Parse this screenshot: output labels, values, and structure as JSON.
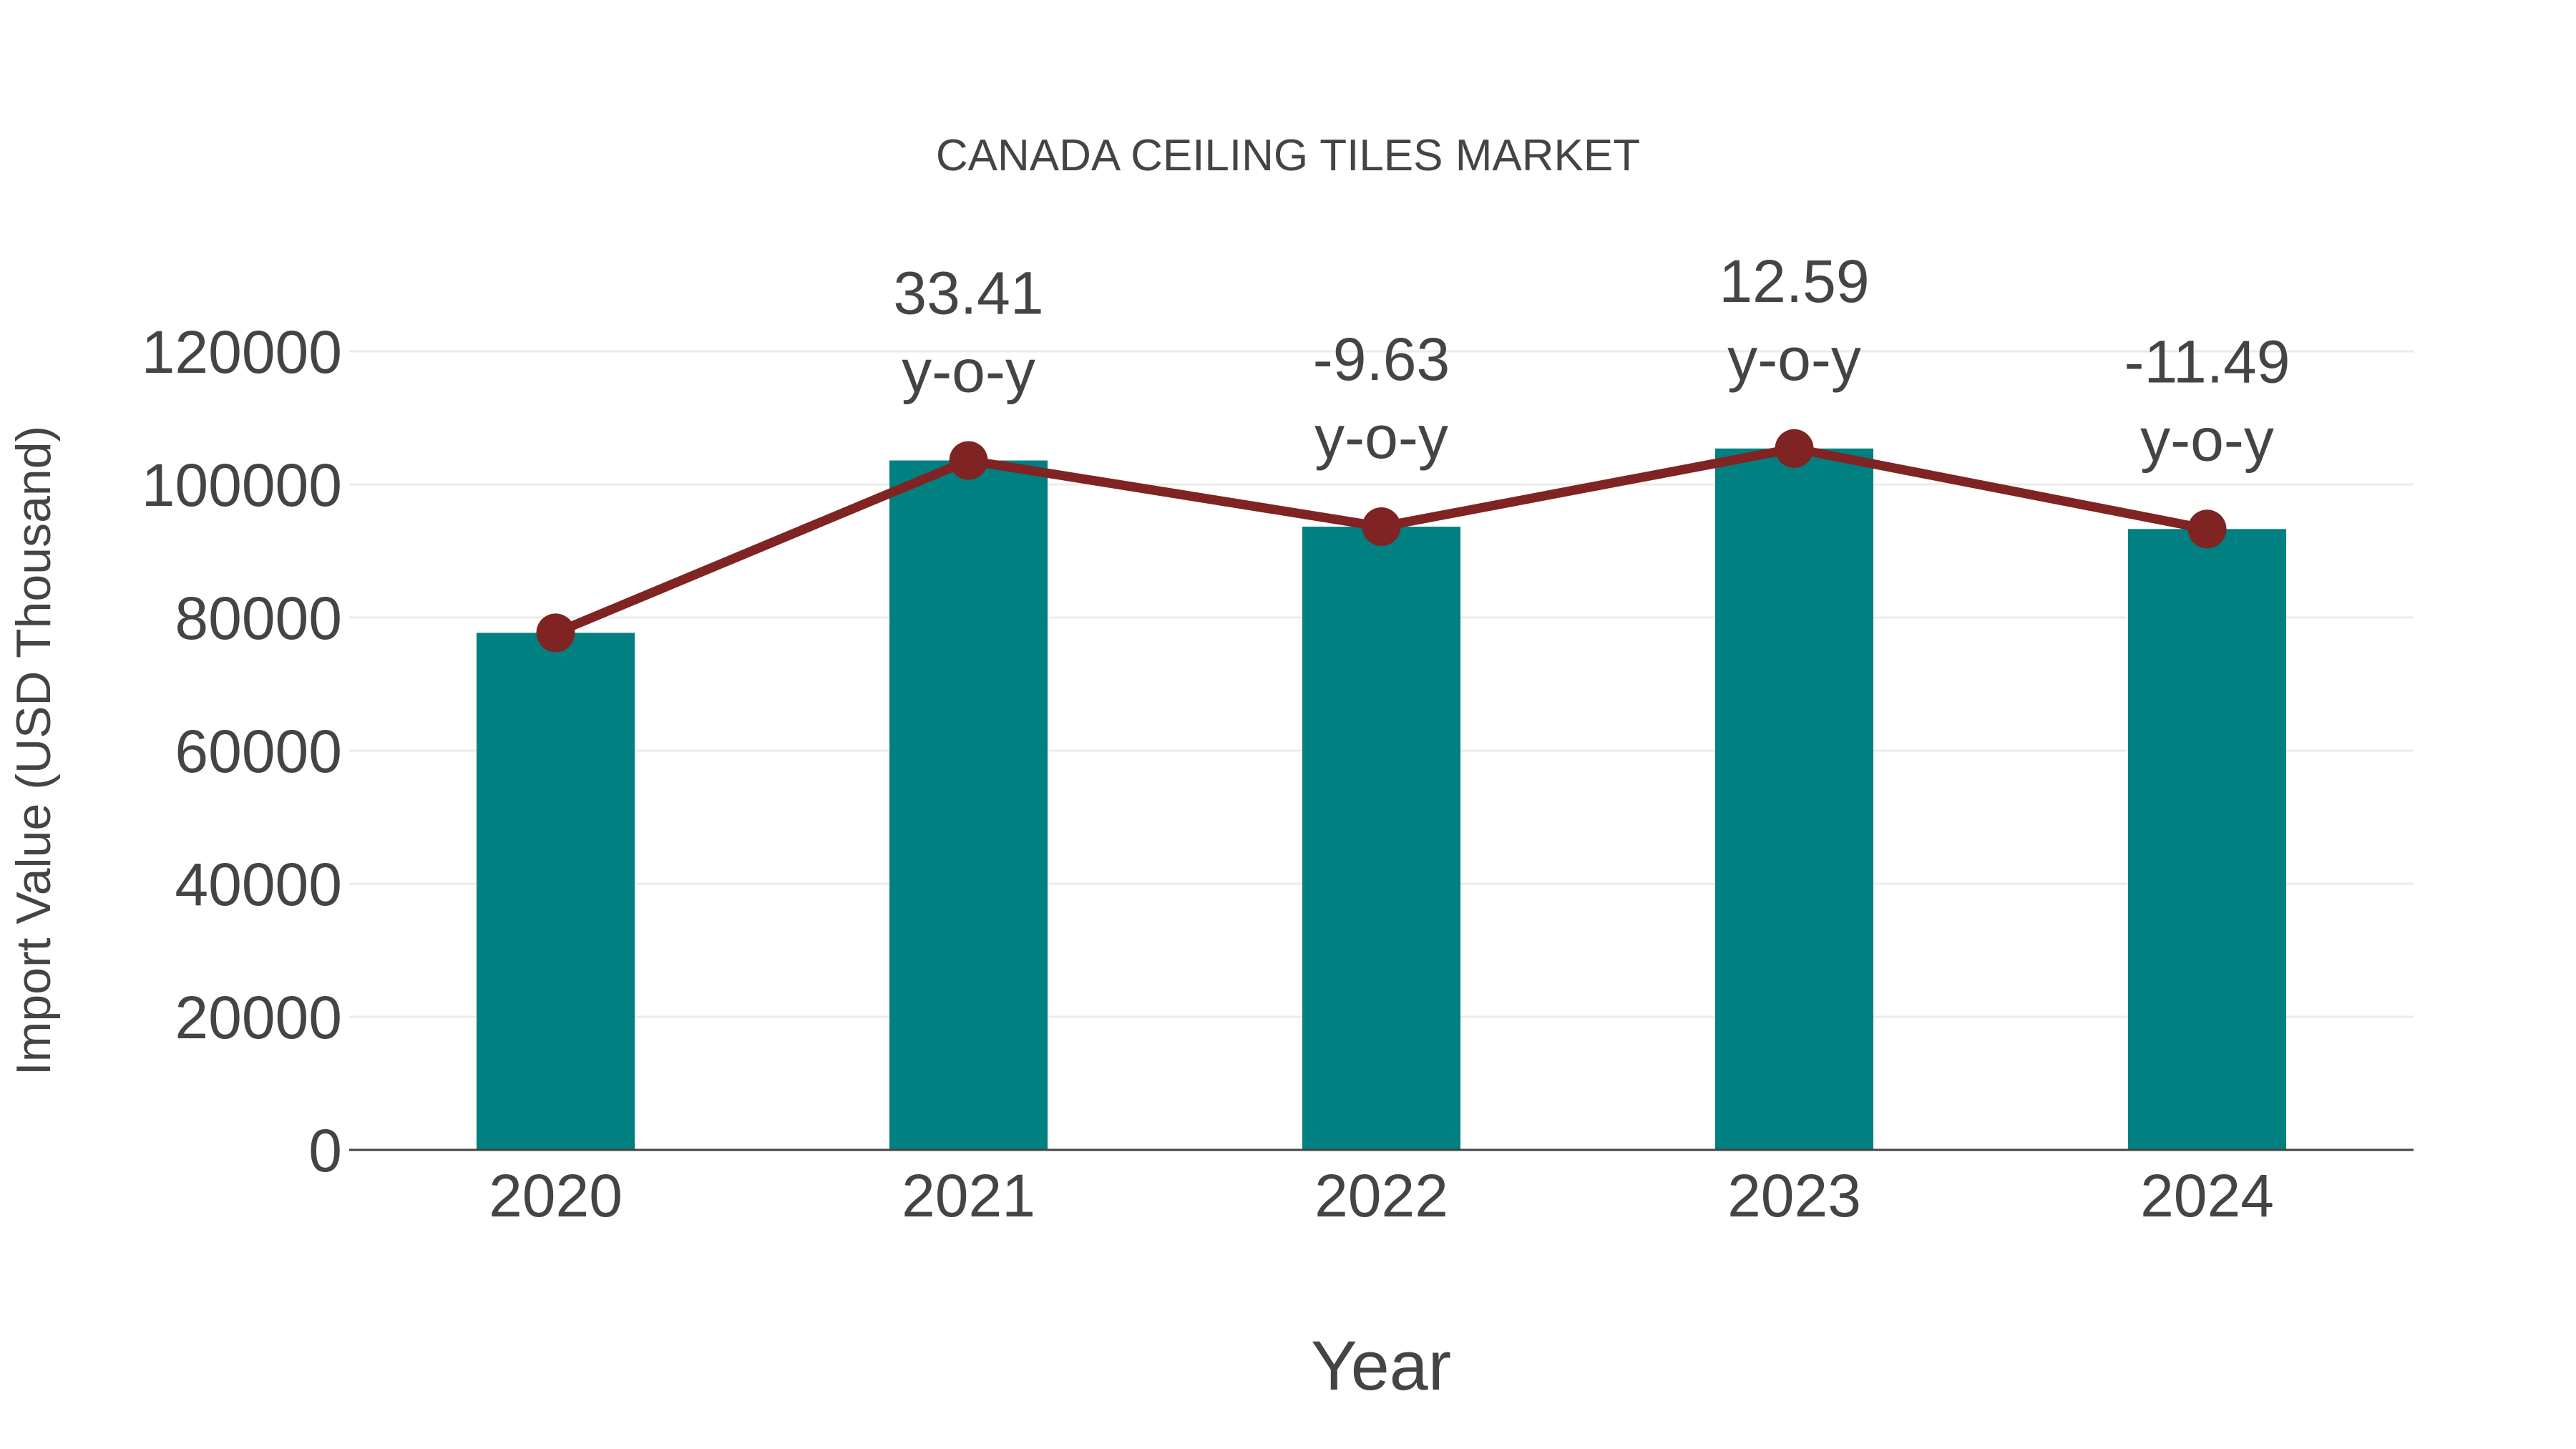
{
  "chart_data": {
    "type": "bar",
    "title": "CANADA CEILING TILES MARKET",
    "xlabel": "Year",
    "ylabel": "Import Value (USD Thousand)",
    "categories": [
      "2020",
      "2021",
      "2022",
      "2023",
      "2024"
    ],
    "series": [
      {
        "name": "Import Value",
        "type": "bar",
        "color": "#008080",
        "values": [
          77700,
          103600,
          93650,
          105400,
          93300
        ]
      },
      {
        "name": "y-o-y change line",
        "type": "line",
        "color": "#7F2323",
        "values": [
          77700,
          103600,
          93650,
          105400,
          93300
        ]
      }
    ],
    "annotations": [
      {
        "category": "2021",
        "value": "33.41",
        "label": "y-o-y"
      },
      {
        "category": "2022",
        "value": "-9.63",
        "label": "y-o-y"
      },
      {
        "category": "2023",
        "value": "12.59",
        "label": "y-o-y"
      },
      {
        "category": "2024",
        "value": "-11.49",
        "label": "y-o-y"
      }
    ],
    "yaxis": {
      "min": 0,
      "max": 120000,
      "tick_step": 20000,
      "ticks": [
        0,
        20000,
        40000,
        60000,
        80000,
        100000,
        120000
      ]
    },
    "xaxis": {
      "ticks": [
        "2020",
        "2021",
        "2022",
        "2023",
        "2024"
      ]
    },
    "grid": true,
    "legend": false,
    "colors": {
      "bar": "#008080",
      "line": "#7F2323",
      "marker": "#7F2323",
      "text": "#444444",
      "axis_line": "#444444",
      "gridline": "#EBEBEB",
      "background": "#FFFFFF"
    }
  }
}
